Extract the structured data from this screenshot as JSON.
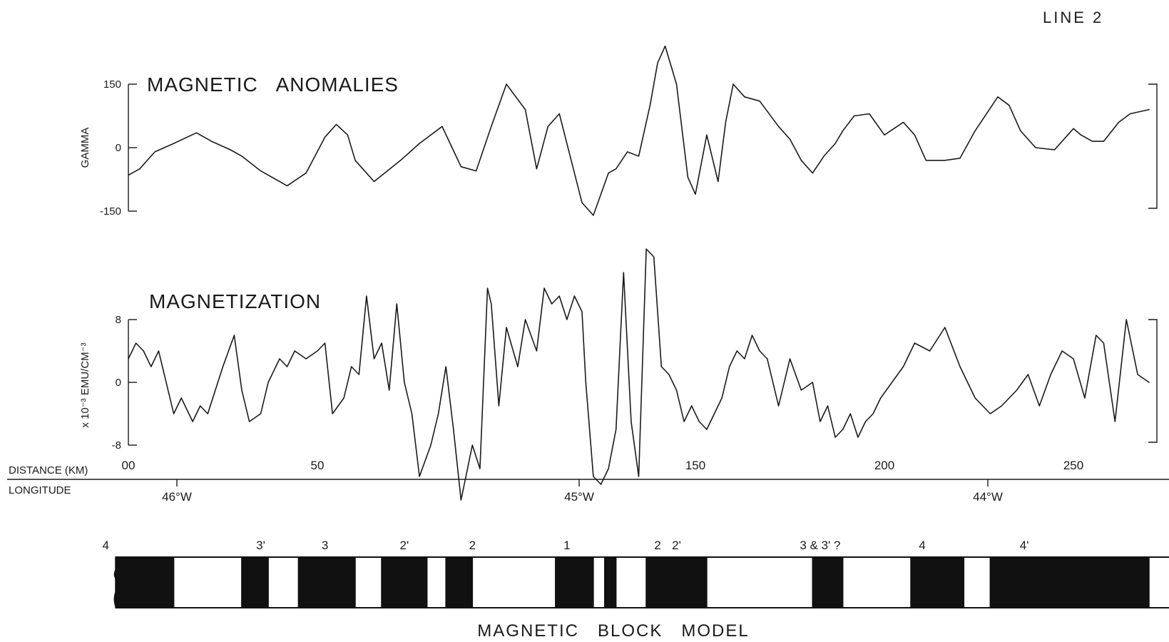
{
  "line_label": "LINE 2",
  "footer_title": "MAGNETIC   BLOCK   MODEL",
  "distance_axis": {
    "label": "DISTANCE (KM)",
    "ticks": [
      "00",
      "50",
      "150",
      "200",
      "250"
    ],
    "tick_values": [
      0,
      50,
      150,
      200,
      250
    ]
  },
  "longitude_axis": {
    "label": "LONGITUDE",
    "ticks": [
      "46°W",
      "45°W",
      "44°W"
    ],
    "tick_values": [
      46,
      45,
      44
    ]
  },
  "chart_data": [
    {
      "type": "line",
      "title": "MAGNETIC   ANOMALIES",
      "xlabel": "DISTANCE (KM)",
      "ylabel": "GAMMA",
      "ylim": [
        -150,
        150
      ],
      "yticks": [
        "150",
        "0",
        "-150"
      ],
      "ytick_values": [
        150,
        0,
        -150
      ],
      "xlim": [
        0,
        270
      ],
      "x": [
        0,
        3,
        7,
        12,
        18,
        22,
        27,
        30,
        35,
        42,
        47,
        52,
        55,
        58,
        60,
        65,
        72,
        77,
        83,
        88,
        92,
        96,
        100,
        105,
        108,
        111,
        114,
        118,
        120,
        123,
        127,
        129,
        132,
        135,
        138,
        140,
        142,
        145,
        148,
        150,
        153,
        156,
        158,
        160,
        163,
        167,
        172,
        175,
        178,
        181,
        184,
        187,
        189,
        192,
        196,
        200,
        205,
        208,
        211,
        216,
        220,
        224,
        230,
        233,
        236,
        240,
        245,
        248,
        250,
        252,
        255,
        258,
        262,
        265,
        270
      ],
      "values": [
        -65,
        -50,
        -10,
        10,
        35,
        15,
        -5,
        -20,
        -55,
        -90,
        -60,
        25,
        55,
        30,
        -30,
        -80,
        -30,
        10,
        50,
        -45,
        -55,
        50,
        150,
        90,
        -50,
        50,
        80,
        -60,
        -130,
        -160,
        -60,
        -50,
        -10,
        -20,
        100,
        200,
        240,
        150,
        -70,
        -110,
        30,
        -80,
        60,
        150,
        120,
        110,
        50,
        20,
        -30,
        -60,
        -20,
        10,
        40,
        75,
        80,
        30,
        60,
        30,
        -30,
        -30,
        -25,
        40,
        120,
        100,
        40,
        0,
        -5,
        25,
        45,
        30,
        15,
        15,
        60,
        80,
        90
      ]
    },
    {
      "type": "line",
      "title": "MAGNETIZATION",
      "xlabel": "DISTANCE (KM)",
      "ylabel": "x 10⁻³  EMU/CM⁻³",
      "ylim": [
        -8,
        8
      ],
      "yticks": [
        "8",
        "0",
        "-8"
      ],
      "ytick_values": [
        8,
        0,
        -8
      ],
      "xlim": [
        0,
        270
      ],
      "x": [
        0,
        2,
        4,
        6,
        8,
        10,
        12,
        14,
        17,
        19,
        21,
        23,
        25,
        28,
        30,
        32,
        35,
        37,
        40,
        42,
        44,
        47,
        50,
        52,
        54,
        57,
        59,
        61,
        63,
        65,
        67,
        69,
        71,
        73,
        75,
        77,
        80,
        82,
        84,
        86,
        88,
        91,
        93,
        95,
        96,
        98,
        100,
        103,
        105,
        108,
        110,
        112,
        114,
        116,
        118,
        120,
        121,
        123,
        125,
        127,
        129,
        131,
        133,
        135,
        137,
        139,
        141,
        143,
        145,
        147,
        149,
        151,
        153,
        155,
        157,
        159,
        161,
        163,
        165,
        167,
        169,
        172,
        175,
        178,
        181,
        183,
        185,
        187,
        189,
        191,
        193,
        195,
        197,
        199,
        202,
        205,
        208,
        212,
        216,
        220,
        224,
        228,
        231,
        235,
        238,
        241,
        244,
        247,
        250,
        253,
        256,
        258,
        261,
        264,
        267,
        270
      ],
      "values": [
        3,
        5,
        4,
        2,
        4,
        0,
        -4,
        -2,
        -5,
        -3,
        -4,
        -1,
        2,
        6,
        -1,
        -5,
        -4,
        0,
        3,
        2,
        4,
        3,
        4,
        5,
        -4,
        -2,
        2,
        1,
        11,
        3,
        5,
        -1,
        10,
        0,
        -4,
        -12,
        -8,
        -4,
        2,
        -6,
        -15,
        -8,
        -11,
        12,
        10,
        -3,
        7,
        2,
        8,
        4,
        12,
        10,
        11,
        8,
        11,
        9,
        0,
        -12,
        -13,
        -11,
        -6,
        14,
        -5,
        -12,
        17,
        16,
        2,
        1,
        -1,
        -5,
        -3,
        -5,
        -6,
        -4,
        -2,
        2,
        4,
        3,
        6,
        4,
        3,
        -3,
        3,
        -1,
        0,
        -5,
        -3,
        -7,
        -6,
        -4,
        -7,
        -5,
        -4,
        -2,
        0,
        2,
        5,
        4,
        7,
        2,
        -2,
        -4,
        -3,
        -1,
        1,
        -3,
        1,
        4,
        3,
        -2,
        6,
        5,
        -5,
        8,
        1,
        0
      ]
    }
  ],
  "block_model": {
    "labels": [
      "4",
      "3'",
      "3",
      "2'",
      "2",
      "1",
      "2",
      "2'",
      "3 & 3' ?",
      "4",
      "4'"
    ],
    "label_positions_km": [
      -6,
      35,
      52,
      73,
      91,
      116,
      140,
      145,
      183,
      210,
      237
    ],
    "blocks_km": [
      [
        -10,
        12,
        "normal"
      ],
      [
        12,
        30,
        "reversed"
      ],
      [
        30,
        37,
        "normal"
      ],
      [
        37,
        45,
        "reversed"
      ],
      [
        45,
        60,
        "normal"
      ],
      [
        60,
        67,
        "reversed"
      ],
      [
        67,
        79,
        "normal"
      ],
      [
        79,
        84,
        "reversed"
      ],
      [
        84,
        91,
        "normal"
      ],
      [
        91,
        113,
        "reversed"
      ],
      [
        113,
        123,
        "normal"
      ],
      [
        123,
        126,
        "reversed"
      ],
      [
        126,
        129,
        "normal"
      ],
      [
        129,
        137,
        "reversed"
      ],
      [
        137,
        153,
        "normal"
      ],
      [
        153,
        181,
        "reversed"
      ],
      [
        181,
        189,
        "normal"
      ],
      [
        189,
        207,
        "reversed"
      ],
      [
        207,
        221,
        "normal"
      ],
      [
        221,
        228,
        "reversed"
      ],
      [
        228,
        270,
        "normal"
      ]
    ],
    "colors": {
      "normal": "#111111",
      "reversed": "#ffffff"
    }
  }
}
